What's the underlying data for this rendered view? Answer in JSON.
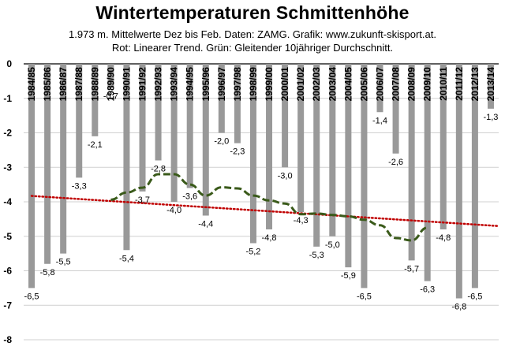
{
  "title": "Wintertemperaturen Schmittenhöhe",
  "subtitle_line1": "1.973 m. Mittelwerte Dez bis Feb. Daten: ZAMG. Grafik:  www.zukunft-skisport.at.",
  "subtitle_line2": "Rot: Linearer Trend. Grün: Gleitender 10jähriger Durchschnitt.",
  "chart_data": {
    "type": "bar",
    "categories": [
      "1984/85",
      "1985/86",
      "1986/87",
      "1987/88",
      "1988/89",
      "1989/90",
      "1990/91",
      "1991/92",
      "1992/93",
      "1993/94",
      "1994/95",
      "1995/96",
      "1996/97",
      "1997/98",
      "1998/99",
      "1999/00",
      "2000/01",
      "2001/02",
      "2002/03",
      "2003/04",
      "2004/05",
      "2005/06",
      "2006/07",
      "2007/08",
      "2008/09",
      "2009/10",
      "2010/11",
      "2011/12",
      "2012/13",
      "2013/14"
    ],
    "values": [
      -6.5,
      -5.8,
      -5.5,
      -3.3,
      -2.1,
      -0.7,
      -5.4,
      -3.7,
      -2.8,
      -4.0,
      -3.6,
      -4.4,
      -2.0,
      -2.3,
      -5.2,
      -4.8,
      -3.0,
      -4.3,
      -5.3,
      -5.0,
      -5.9,
      -6.5,
      -1.4,
      -2.6,
      -5.7,
      -6.3,
      -4.8,
      -6.8,
      -6.5,
      -1.3
    ],
    "value_labels": [
      "-6,5",
      "-5,8",
      "-5,5",
      "-3,3",
      "-2,1",
      "-0,7",
      "-5,4",
      "-3,7",
      "-2,8",
      "-4,0",
      "-3,6",
      "-4,4",
      "-2,0",
      "-2,3",
      "-5,2",
      "-4,8",
      "-3,0",
      "-4,3",
      "-5,3",
      "-5,0",
      "-5,9",
      "-6,5",
      "-1,4",
      "-2,6",
      "-5,7",
      "-6,3",
      "-4,8",
      "-6,8",
      "-6,5",
      "-1,3"
    ],
    "ylim": [
      -8,
      0
    ],
    "yticks": [
      0,
      -1,
      -2,
      -3,
      -4,
      -5,
      -6,
      -7,
      -8
    ],
    "bar_color": "#999999",
    "series": [
      {
        "name": "Linearer Trend",
        "color": "#c00000",
        "style": "dotted",
        "start": -3.83,
        "end": -4.7
      },
      {
        "name": "Gleitender 10jähriger Durchschnitt",
        "color": "#3a5a1a",
        "style": "dashed",
        "values": [
          null,
          null,
          null,
          null,
          null,
          -3.94,
          -3.73,
          -3.59,
          -3.2,
          -3.2,
          -3.5,
          -3.82,
          -3.58,
          -3.61,
          -3.82,
          -3.96,
          -4.05,
          -4.36,
          -4.34,
          -4.38,
          -4.42,
          -4.52,
          -4.68,
          -5.05,
          -5.12,
          -4.75,
          null,
          null,
          null,
          null
        ]
      }
    ]
  }
}
